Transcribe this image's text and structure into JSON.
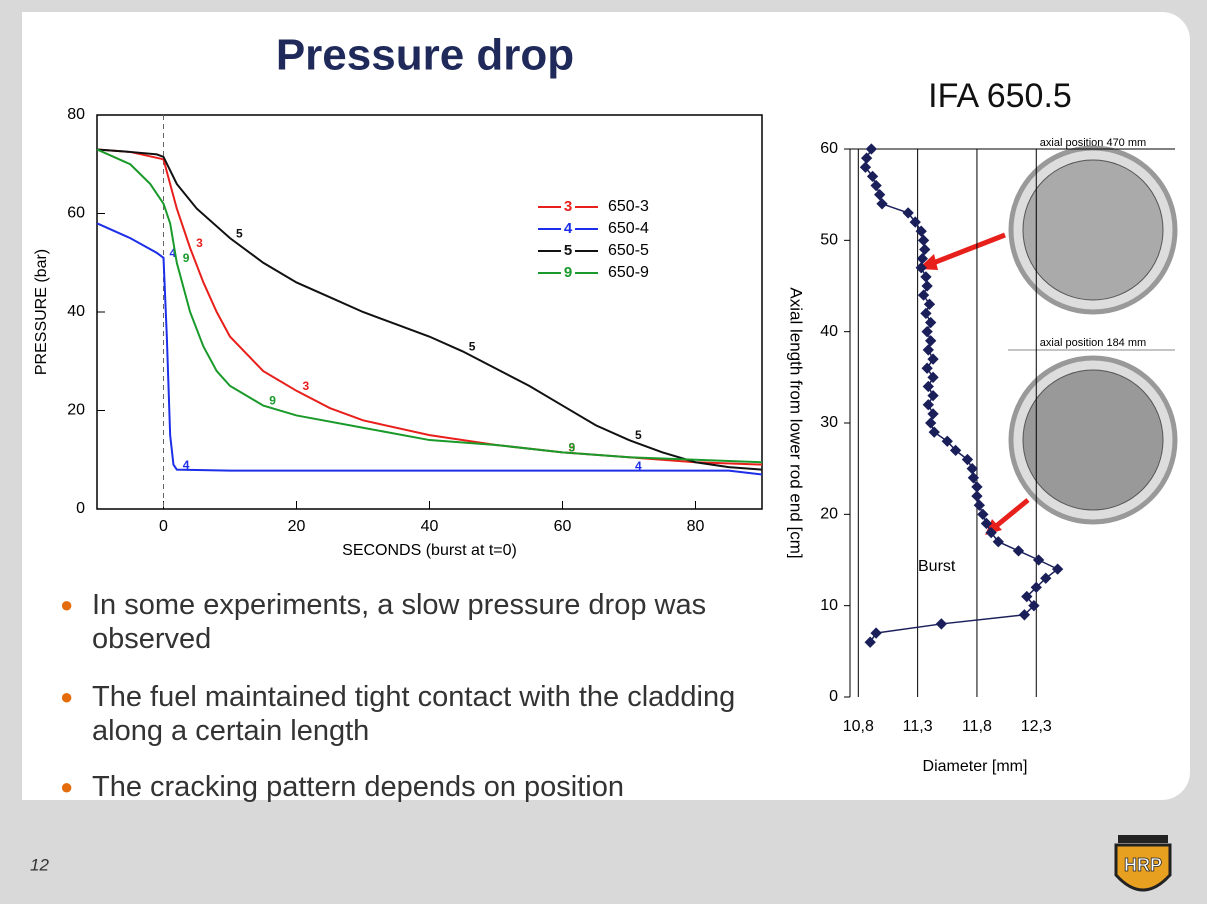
{
  "title": "Pressure drop",
  "subtitle": "IFA 650.5",
  "bullets": [
    "In some experiments, a slow pressure drop was observed",
    "The fuel maintained tight contact with the cladding along a certain length",
    "The cracking pattern depends on position"
  ],
  "photos": [
    "axial position 470 mm",
    "axial position 184 mm"
  ],
  "page_number": "12",
  "logo": "HRP",
  "chart_data": [
    {
      "type": "line",
      "xlabel": "SECONDS (burst at t=0)",
      "ylabel": "PRESSURE (bar)",
      "xlim": [
        -10,
        90
      ],
      "ylim": [
        0,
        80
      ],
      "xticks": [
        0,
        20,
        40,
        60,
        80
      ],
      "yticks": [
        0,
        20,
        40,
        60,
        80
      ],
      "vline": 0,
      "legend": "upper right",
      "series": [
        {
          "name": "650-3",
          "label": "3",
          "color": "#e8201c",
          "x": [
            -10,
            -5,
            0,
            1,
            2,
            4,
            6,
            8,
            10,
            15,
            20,
            25,
            30,
            40,
            50,
            60,
            70,
            80,
            90
          ],
          "values": [
            73,
            72.5,
            71,
            66,
            61,
            53,
            46,
            40,
            35,
            28,
            24,
            20.5,
            18,
            15,
            13,
            11.5,
            10.5,
            9.5,
            9
          ]
        },
        {
          "name": "650-4",
          "label": "4",
          "color": "#1c2ee8",
          "x": [
            -10,
            -5,
            -1,
            0,
            0.5,
            1,
            1.5,
            2,
            10,
            40,
            70,
            85,
            90
          ],
          "values": [
            58,
            55,
            52,
            51,
            35,
            15,
            9,
            8,
            7.8,
            7.8,
            7.8,
            7.8,
            7
          ]
        },
        {
          "name": "650-5",
          "label": "5",
          "color": "#111111",
          "x": [
            -10,
            -5,
            -1,
            0,
            2,
            5,
            10,
            15,
            20,
            25,
            30,
            35,
            40,
            45,
            50,
            55,
            60,
            65,
            70,
            75,
            80,
            85,
            90
          ],
          "values": [
            73,
            72.5,
            72,
            71.5,
            66,
            61,
            55,
            50,
            46,
            43,
            40,
            37.5,
            35,
            32,
            28.5,
            25,
            21,
            17,
            14,
            11.5,
            9.5,
            8.5,
            8
          ]
        },
        {
          "name": "650-9",
          "label": "9",
          "color": "#1a9a2a",
          "x": [
            -10,
            -5,
            -2,
            0,
            1,
            2,
            4,
            6,
            8,
            10,
            15,
            20,
            30,
            40,
            50,
            60,
            70,
            80,
            90
          ],
          "values": [
            73,
            70,
            66,
            62,
            58,
            50,
            40,
            33,
            28,
            25,
            21,
            19,
            16.5,
            14,
            13,
            11.5,
            10.5,
            10,
            9.5
          ]
        }
      ]
    },
    {
      "type": "line",
      "markers": true,
      "xlabel": "Diameter [mm]",
      "ylabel": "Axial length from lower rod end [cm]",
      "annotation": "Burst",
      "grid": "x",
      "xlim": [
        10.73,
        12.5
      ],
      "ylim": [
        0,
        60
      ],
      "xticks": [
        {
          "value": 10.8,
          "label": "10,8"
        },
        {
          "value": 11.3,
          "label": "11,3"
        },
        {
          "value": 11.8,
          "label": "11,8"
        },
        {
          "value": 12.3,
          "label": "12,3"
        }
      ],
      "yticks": [
        0,
        10,
        20,
        30,
        40,
        50,
        60
      ],
      "series": [
        {
          "color": "#1a1f5a",
          "x": [
            10.91,
            10.87,
            10.86,
            10.92,
            10.95,
            10.98,
            11.0,
            11.22,
            11.28,
            11.33,
            11.35,
            11.36,
            11.34,
            11.33,
            11.37,
            11.38,
            11.35,
            11.4,
            11.37,
            11.41,
            11.38,
            11.41,
            11.39,
            11.43,
            11.38,
            11.43,
            11.39,
            11.43,
            11.39,
            11.43,
            11.41,
            11.44,
            11.55,
            11.62,
            11.72,
            11.76,
            11.77,
            11.8,
            11.8,
            11.82,
            11.85,
            11.88,
            11.92,
            11.98,
            12.15,
            12.32,
            12.48,
            12.38,
            12.3,
            12.22,
            12.28,
            12.2,
            11.5,
            10.95,
            10.9
          ],
          "values": [
            60,
            59,
            58,
            57,
            56,
            55,
            54,
            53,
            52,
            51,
            50,
            49,
            48,
            47,
            46,
            45,
            44,
            43,
            42,
            41,
            40,
            39,
            38,
            37,
            36,
            35,
            34,
            33,
            32,
            31,
            30,
            29,
            28,
            27,
            26,
            25,
            24,
            23,
            22,
            21,
            20,
            19,
            18,
            17,
            16,
            15,
            14,
            13,
            12,
            11,
            10,
            9,
            8,
            7,
            6
          ]
        }
      ]
    }
  ]
}
